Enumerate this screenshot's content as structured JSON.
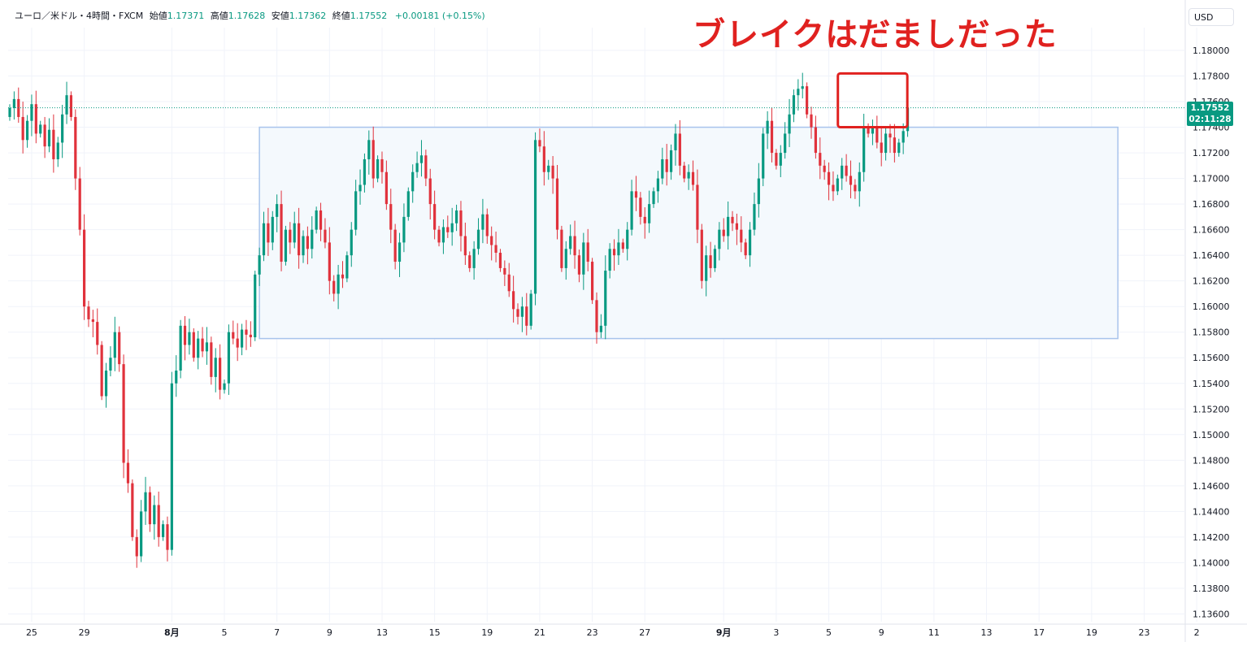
{
  "header": {
    "symbol": "ユーロ／米ドル・4時間・FXCM",
    "open_label": "始値",
    "open": "1.17371",
    "high_label": "高値",
    "high": "1.17628",
    "low_label": "安値",
    "low": "1.17362",
    "close_label": "終値",
    "close": "1.17552",
    "change": "+0.00181 (+0.15%)"
  },
  "currency": "USD",
  "annotation": "ブレイクはだましだった",
  "price_tag": {
    "price": "1.17552",
    "countdown": "02:11:28"
  },
  "colors": {
    "up": "#089981",
    "down": "#e0323c",
    "range_box": "#a8c4ec",
    "highlight": "#e0211f"
  },
  "chart_data": {
    "type": "candlestick",
    "title": "ユーロ／米ドル・4時間・FXCM",
    "xlabel": "",
    "ylabel": "",
    "ylim": [
      1.135,
      1.1815
    ],
    "y_ticks": [
      "1.18000",
      "1.17800",
      "1.17600",
      "1.17400",
      "1.17200",
      "1.17000",
      "1.16800",
      "1.16600",
      "1.16400",
      "1.16200",
      "1.16000",
      "1.15800",
      "1.15600",
      "1.15400",
      "1.15200",
      "1.15000",
      "1.14800",
      "1.14600",
      "1.14400",
      "1.14200",
      "1.14000",
      "1.13800",
      "1.13600"
    ],
    "x_ticks": [
      {
        "label": "25",
        "bar": 5
      },
      {
        "label": "29",
        "bar": 17
      },
      {
        "label": "8月",
        "bar": 37
      },
      {
        "label": "5",
        "bar": 49
      },
      {
        "label": "7",
        "bar": 61
      },
      {
        "label": "9",
        "bar": 73
      },
      {
        "label": "13",
        "bar": 85
      },
      {
        "label": "15",
        "bar": 97
      },
      {
        "label": "19",
        "bar": 109
      },
      {
        "label": "21",
        "bar": 121
      },
      {
        "label": "23",
        "bar": 133
      },
      {
        "label": "27",
        "bar": 145
      },
      {
        "label": "9月",
        "bar": 163
      },
      {
        "label": "3",
        "bar": 175
      },
      {
        "label": "5",
        "bar": 187
      },
      {
        "label": "9",
        "bar": 199
      },
      {
        "label": "11",
        "bar": 211
      },
      {
        "label": "13",
        "bar": 223
      },
      {
        "label": "17",
        "bar": 235
      },
      {
        "label": "19",
        "bar": 247
      },
      {
        "label": "23",
        "bar": 259
      },
      {
        "label": "2",
        "bar": 271
      }
    ],
    "last_price": 1.17552,
    "range_box": {
      "bar_start": 57,
      "bar_end": 253,
      "top": 1.174,
      "bottom": 1.1575
    },
    "highlight_box": {
      "bar_start": 190,
      "bar_end": 204,
      "top": 1.1782,
      "bottom": 1.174
    },
    "closes": [
      1.1755,
      1.1762,
      1.1748,
      1.173,
      1.1745,
      1.1758,
      1.1735,
      1.1742,
      1.1725,
      1.1738,
      1.1715,
      1.1728,
      1.175,
      1.1765,
      1.1748,
      1.17,
      1.166,
      1.16,
      1.159,
      1.1588,
      1.157,
      1.153,
      1.155,
      1.156,
      1.158,
      1.1555,
      1.1478,
      1.1462,
      1.142,
      1.1405,
      1.144,
      1.1455,
      1.143,
      1.1445,
      1.142,
      1.143,
      1.141,
      1.154,
      1.155,
      1.1585,
      1.157,
      1.158,
      1.156,
      1.1575,
      1.1565,
      1.1572,
      1.1545,
      1.156,
      1.1535,
      1.154,
      1.158,
      1.1575,
      1.1568,
      1.1582,
      1.1578,
      1.1576,
      1.1625,
      1.164,
      1.1665,
      1.165,
      1.167,
      1.168,
      1.1635,
      1.166,
      1.165,
      1.1665,
      1.164,
      1.1655,
      1.1645,
      1.166,
      1.1675,
      1.166,
      1.165,
      1.162,
      1.161,
      1.1625,
      1.1622,
      1.164,
      1.166,
      1.169,
      1.1695,
      1.1715,
      1.173,
      1.17,
      1.1715,
      1.1705,
      1.168,
      1.166,
      1.1635,
      1.165,
      1.167,
      1.169,
      1.1705,
      1.1712,
      1.1718,
      1.17,
      1.168,
      1.166,
      1.165,
      1.1662,
      1.1658,
      1.1665,
      1.1675,
      1.1655,
      1.164,
      1.163,
      1.1645,
      1.166,
      1.1672,
      1.1655,
      1.1648,
      1.1642,
      1.163,
      1.1625,
      1.1612,
      1.1598,
      1.1592,
      1.16,
      1.1585,
      1.161,
      1.173,
      1.1725,
      1.1705,
      1.171,
      1.17,
      1.166,
      1.163,
      1.1645,
      1.1655,
      1.164,
      1.1625,
      1.165,
      1.1635,
      1.1605,
      1.158,
      1.1585,
      1.1628,
      1.1645,
      1.164,
      1.165,
      1.1645,
      1.166,
      1.169,
      1.1685,
      1.167,
      1.1665,
      1.168,
      1.169,
      1.17,
      1.1715,
      1.1705,
      1.1722,
      1.1735,
      1.171,
      1.17,
      1.1705,
      1.1695,
      1.166,
      1.162,
      1.164,
      1.163,
      1.1645,
      1.166,
      1.1655,
      1.167,
      1.1665,
      1.166,
      1.165,
      1.164,
      1.166,
      1.168,
      1.17,
      1.1735,
      1.1745,
      1.172,
      1.171,
      1.172,
      1.1735,
      1.175,
      1.1765,
      1.177,
      1.1772,
      1.175,
      1.174,
      1.172,
      1.171,
      1.1705,
      1.1695,
      1.169,
      1.17,
      1.171,
      1.1702,
      1.1695,
      1.169,
      1.1705,
      1.174,
      1.1735,
      1.174,
      1.1728,
      1.172,
      1.1735,
      1.1732,
      1.172,
      1.1728,
      1.1737,
      1.1755
    ]
  }
}
